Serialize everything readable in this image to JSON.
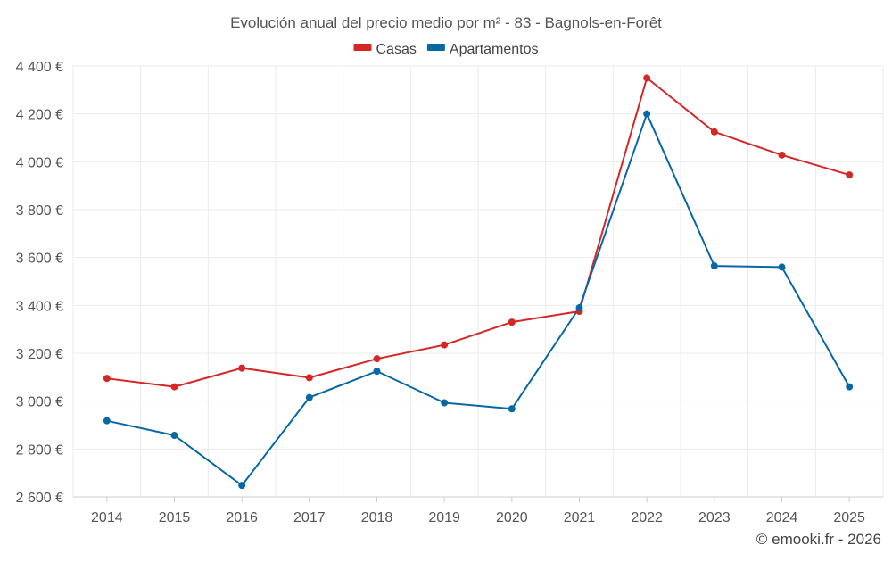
{
  "chart_data": {
    "type": "line",
    "title": "Evolución anual del precio medio por m² - 83 - Bagnols-en-Forêt",
    "xlabel": "",
    "ylabel": "",
    "categories": [
      "2014",
      "2015",
      "2016",
      "2017",
      "2018",
      "2019",
      "2020",
      "2021",
      "2022",
      "2023",
      "2024",
      "2025"
    ],
    "series": [
      {
        "name": "Casas",
        "color": "#d62728",
        "values": [
          3095,
          3060,
          3138,
          3098,
          3177,
          3235,
          3330,
          3375,
          4350,
          4125,
          4028,
          3945
        ]
      },
      {
        "name": "Apartamentos",
        "color": "#0868a4",
        "values": [
          2918,
          2857,
          2648,
          3015,
          3125,
          2993,
          2968,
          3390,
          4200,
          3565,
          3560,
          3060
        ]
      }
    ],
    "ylim": [
      2600,
      4400
    ],
    "yticks": [
      2600,
      2800,
      3000,
      3200,
      3400,
      3600,
      3800,
      4000,
      4200,
      4400
    ],
    "ytick_labels": [
      "2 600 €",
      "2 800 €",
      "3 000 €",
      "3 200 €",
      "3 400 €",
      "3 600 €",
      "3 800 €",
      "4 000 €",
      "4 200 €",
      "4 400 €"
    ],
    "grid": true,
    "legend_position": "top-center"
  },
  "credit": "© emooki.fr - 2026"
}
